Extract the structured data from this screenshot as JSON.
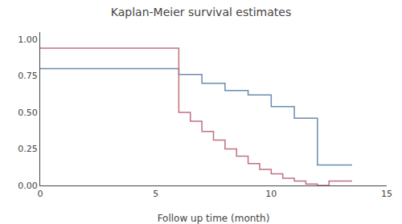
{
  "chart_data": {
    "type": "line",
    "title": "Kaplan-Meier survival estimates",
    "x_label": "Follow up time (month)",
    "xlim": [
      0,
      15
    ],
    "ylim": [
      0.0,
      1.05
    ],
    "xticks": [
      0,
      5,
      10,
      15
    ],
    "yticks": [
      {
        "value": 0.0,
        "label": "0.00"
      },
      {
        "value": 0.25,
        "label": "0.25"
      },
      {
        "value": 0.5,
        "label": "0.50"
      },
      {
        "value": 0.75,
        "label": "0.75"
      },
      {
        "value": 1.0,
        "label": "1.00"
      }
    ],
    "grid": false,
    "series": [
      {
        "color": "#6b8cae",
        "x": [
          0,
          6.0,
          6.0,
          7.0,
          7.0,
          8.0,
          8.0,
          9.0,
          9.0,
          10.0,
          10.0,
          11.0,
          11.0,
          12.0,
          12.0,
          13.5
        ],
        "values": [
          0.8,
          0.8,
          0.76,
          0.76,
          0.7,
          0.7,
          0.65,
          0.65,
          0.62,
          0.62,
          0.54,
          0.54,
          0.46,
          0.46,
          0.14,
          0.14
        ]
      },
      {
        "color": "#c07080",
        "x": [
          0,
          6.0,
          6.0,
          6.5,
          6.5,
          7.0,
          7.0,
          7.5,
          7.5,
          8.0,
          8.0,
          8.5,
          8.5,
          9.0,
          9.0,
          9.5,
          9.5,
          10.0,
          10.0,
          10.5,
          10.5,
          11.0,
          11.0,
          11.5,
          11.5,
          12.0,
          12.0,
          12.5,
          12.5,
          13.5
        ],
        "values": [
          0.94,
          0.94,
          0.5,
          0.5,
          0.44,
          0.44,
          0.37,
          0.37,
          0.31,
          0.31,
          0.25,
          0.25,
          0.2,
          0.2,
          0.15,
          0.15,
          0.11,
          0.11,
          0.08,
          0.08,
          0.05,
          0.05,
          0.03,
          0.03,
          0.01,
          0.01,
          0.0,
          0.0,
          0.03,
          0.03
        ]
      }
    ]
  }
}
